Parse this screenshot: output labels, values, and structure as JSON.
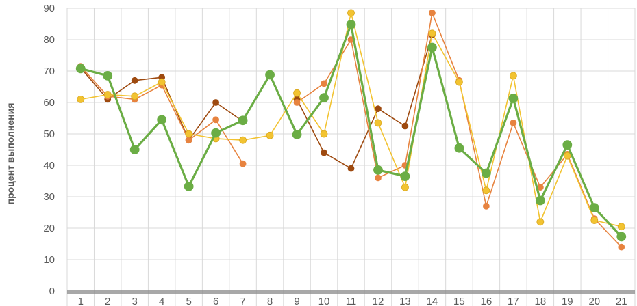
{
  "chart_data": {
    "type": "line",
    "title": "",
    "xlabel": "",
    "ylabel": "процент выполнения",
    "ylim": [
      0,
      90
    ],
    "yticks": [
      0,
      10,
      20,
      30,
      40,
      50,
      60,
      70,
      80,
      90
    ],
    "categories": [
      "1",
      "2",
      "3",
      "4",
      "5",
      "6",
      "7",
      "8",
      "9",
      "10",
      "11",
      "12",
      "13",
      "14",
      "15",
      "16",
      "17",
      "18",
      "19",
      "20",
      "21"
    ],
    "grid": true,
    "legend": "none",
    "series": [
      {
        "color": "#9e4a10",
        "values": [
          71,
          61,
          67,
          68,
          48,
          60,
          54,
          null,
          61,
          44,
          39,
          58,
          52.5,
          81.5,
          null,
          null,
          null,
          null,
          null,
          null,
          null
        ]
      },
      {
        "color": "#e7833f",
        "values": [
          71.5,
          62,
          61,
          65.5,
          48,
          54.5,
          40.5,
          null,
          60,
          66,
          80,
          36,
          40,
          88.5,
          67,
          27,
          53.5,
          33,
          43.5,
          23,
          14
        ]
      },
      {
        "color": "#f2c331",
        "values": [
          61,
          62.5,
          62,
          66.5,
          50,
          48.5,
          48,
          49.5,
          63,
          50,
          88.5,
          53.5,
          33,
          82,
          66.5,
          32,
          68.5,
          22,
          43,
          22.5,
          20.5
        ]
      },
      {
        "color": "#6bad45",
        "values": [
          70.8,
          68.5,
          45,
          54.5,
          33.3,
          50.3,
          54.3,
          68.8,
          49.8,
          61.5,
          84.8,
          38.5,
          36.5,
          77.5,
          45.5,
          37.5,
          61.3,
          28.8,
          46.5,
          26.5,
          17.3
        ]
      }
    ]
  }
}
